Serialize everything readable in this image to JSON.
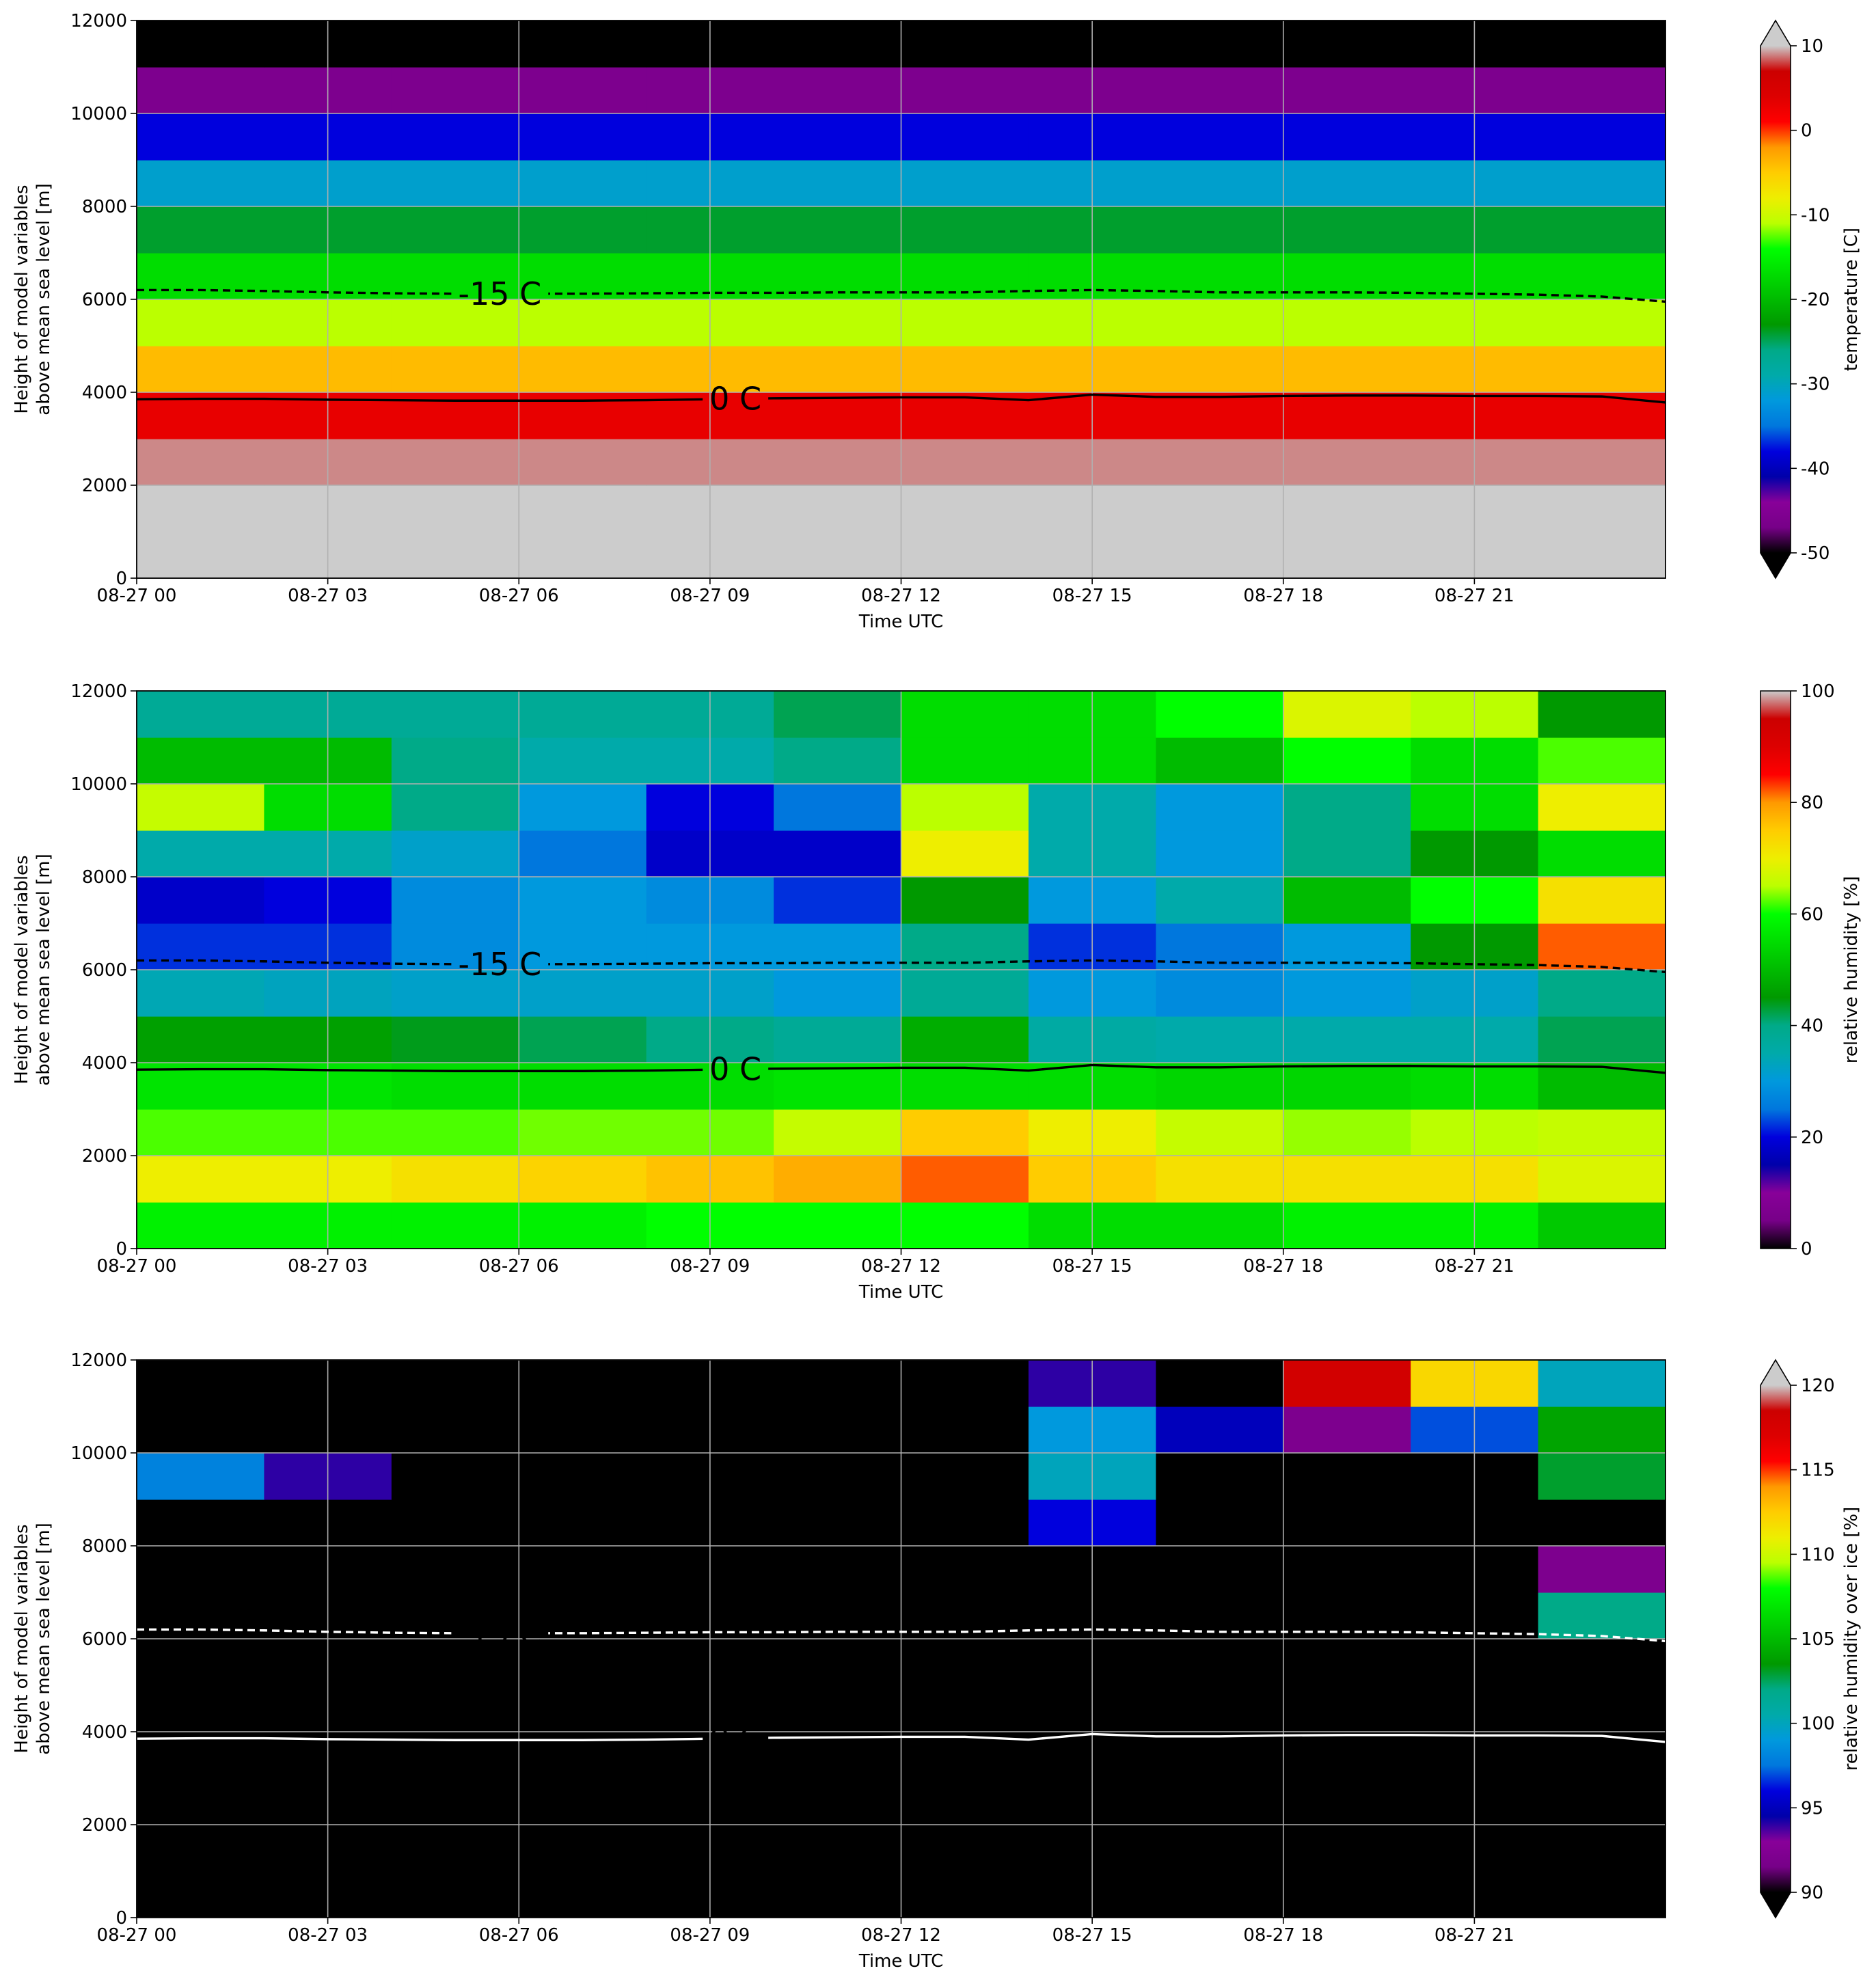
{
  "chart_data": [
    {
      "type": "heatmap",
      "x": [
        1,
        3,
        5,
        7,
        9,
        11,
        13,
        15,
        17,
        19,
        21,
        23
      ],
      "y": [
        500,
        1500,
        2500,
        3500,
        4500,
        5500,
        6500,
        7500,
        8500,
        9500,
        10500,
        11500
      ],
      "z": [
        [
          22,
          22,
          22,
          22,
          22,
          22,
          22,
          22,
          22,
          22,
          22,
          22
        ],
        [
          16,
          16,
          16,
          16,
          16,
          16,
          16,
          16,
          16,
          16,
          16,
          16
        ],
        [
          9,
          9,
          9,
          9,
          9,
          9,
          9,
          9,
          9,
          9,
          9,
          9
        ],
        [
          3,
          3,
          3,
          3,
          3,
          3,
          3,
          3,
          3,
          3,
          3,
          3
        ],
        [
          -4,
          -4,
          -4,
          -4,
          -4,
          -4,
          -4,
          -4,
          -4,
          -4,
          -4,
          -4
        ],
        [
          -11,
          -11,
          -11,
          -11,
          -11,
          -11,
          -11,
          -11,
          -11,
          -11,
          -11,
          -11
        ],
        [
          -17,
          -17,
          -17,
          -17,
          -17,
          -17,
          -17,
          -17,
          -17,
          -17,
          -17,
          -17
        ],
        [
          -24,
          -24,
          -24,
          -24,
          -24,
          -24,
          -24,
          -24,
          -24,
          -24,
          -24,
          -24
        ],
        [
          -31,
          -31,
          -31,
          -31,
          -31,
          -31,
          -31,
          -31,
          -31,
          -31,
          -31,
          -31
        ],
        [
          -38,
          -38,
          -38,
          -38,
          -38,
          -38,
          -38,
          -38,
          -38,
          -38,
          -38,
          -38
        ],
        [
          -46,
          -46,
          -46,
          -46,
          -46,
          -46,
          -46,
          -46,
          -46,
          -46,
          -46,
          -46
        ],
        [
          -52,
          -52,
          -52,
          -52,
          -52,
          -52,
          -52,
          -52,
          -52,
          -52,
          -52,
          -52
        ]
      ],
      "xlim": [
        0,
        24
      ],
      "ylim": [
        0,
        12000
      ],
      "xticks": [
        {
          "value": 0,
          "label": "08-27 00"
        },
        {
          "value": 3,
          "label": "08-27 03"
        },
        {
          "value": 6,
          "label": "08-27 06"
        },
        {
          "value": 9,
          "label": "08-27 09"
        },
        {
          "value": 12,
          "label": "08-27 12"
        },
        {
          "value": 15,
          "label": "08-27 15"
        },
        {
          "value": 18,
          "label": "08-27 18"
        },
        {
          "value": 21,
          "label": "08-27 21"
        }
      ],
      "yticks": [
        0,
        2000,
        4000,
        6000,
        8000,
        10000,
        12000
      ],
      "xlabel": "Time UTC",
      "ylabel": [
        "Height of model variables",
        "above mean sea level [m]"
      ],
      "grid": true,
      "colormap": [
        "#000000",
        "#770088",
        "#880099",
        "#0000aa",
        "#0000dd",
        "#0077dd",
        "#0099dd",
        "#00aaaa",
        "#00aa88",
        "#009900",
        "#00bb00",
        "#00dd00",
        "#00ff00",
        "#bbff00",
        "#eeee00",
        "#ffcc00",
        "#ff9900",
        "#ff0000",
        "#dd0000",
        "#cc0000",
        "#cccccc"
      ],
      "under_color": "#000000",
      "over_color": "#cccccc",
      "colorbar": {
        "label": "temperature [C]",
        "lim": [
          -50,
          10
        ],
        "ticks": [
          -50,
          -40,
          -30,
          -20,
          -10,
          0,
          10
        ],
        "extend": "both"
      },
      "contours": {
        "x": [
          0,
          1,
          2,
          3,
          4,
          5,
          6,
          7,
          8,
          9,
          10,
          11,
          12,
          13,
          14,
          15,
          16,
          17,
          18,
          19,
          20,
          21,
          22,
          23,
          24
        ],
        "series": [
          {
            "name": "-15 C",
            "color": "#000000",
            "linestyle": "dashed",
            "values": [
              6200,
              6200,
              6180,
              6150,
              6130,
              6120,
              6120,
              6120,
              6130,
              6140,
              6140,
              6150,
              6150,
              6150,
              6180,
              6200,
              6180,
              6150,
              6150,
              6150,
              6140,
              6120,
              6100,
              6060,
              5950
            ]
          },
          {
            "name": "0 C",
            "color": "#000000",
            "linestyle": "solid",
            "values": [
              3850,
              3860,
              3860,
              3840,
              3830,
              3820,
              3820,
              3820,
              3830,
              3850,
              3870,
              3880,
              3890,
              3890,
              3830,
              3950,
              3900,
              3900,
              3920,
              3930,
              3930,
              3920,
              3920,
              3910,
              3780
            ]
          }
        ]
      }
    },
    {
      "type": "heatmap",
      "x": [
        1,
        3,
        5,
        7,
        9,
        11,
        13,
        15,
        17,
        19,
        21,
        23
      ],
      "y": [
        500,
        1500,
        2500,
        3500,
        4500,
        5500,
        6500,
        7500,
        8500,
        9500,
        10500,
        11500
      ],
      "z": [
        [
          58,
          58,
          58,
          58,
          60,
          60,
          60,
          55,
          55,
          58,
          58,
          52
        ],
        [
          70,
          70,
          72,
          74,
          76,
          78,
          82,
          75,
          72,
          72,
          72,
          68
        ],
        [
          62,
          62,
          62,
          63,
          63,
          66,
          75,
          70,
          66,
          64,
          65,
          66
        ],
        [
          56,
          56,
          55,
          55,
          55,
          56,
          55,
          55,
          54,
          54,
          55,
          50
        ],
        [
          46,
          46,
          44,
          42,
          40,
          38,
          48,
          36,
          35,
          35,
          35,
          42
        ],
        [
          34,
          33,
          32,
          32,
          32,
          30,
          38,
          30,
          28,
          30,
          32,
          40
        ],
        [
          22,
          22,
          28,
          30,
          30,
          30,
          40,
          22,
          25,
          30,
          45,
          82
        ],
        [
          18,
          20,
          28,
          30,
          28,
          22,
          45,
          30,
          35,
          50,
          60,
          72
        ],
        [
          35,
          35,
          32,
          25,
          18,
          18,
          70,
          35,
          30,
          40,
          45,
          55
        ],
        [
          66,
          55,
          40,
          30,
          20,
          25,
          65,
          35,
          30,
          40,
          55,
          70
        ],
        [
          50,
          50,
          40,
          35,
          35,
          40,
          55,
          55,
          50,
          60,
          55,
          62
        ],
        [
          38,
          38,
          38,
          38,
          38,
          42,
          55,
          55,
          60,
          68,
          65,
          45
        ]
      ],
      "xlim": [
        0,
        24
      ],
      "ylim": [
        0,
        12000
      ],
      "xticks": [
        {
          "value": 0,
          "label": "08-27 00"
        },
        {
          "value": 3,
          "label": "08-27 03"
        },
        {
          "value": 6,
          "label": "08-27 06"
        },
        {
          "value": 9,
          "label": "08-27 09"
        },
        {
          "value": 12,
          "label": "08-27 12"
        },
        {
          "value": 15,
          "label": "08-27 15"
        },
        {
          "value": 18,
          "label": "08-27 18"
        },
        {
          "value": 21,
          "label": "08-27 21"
        }
      ],
      "yticks": [
        0,
        2000,
        4000,
        6000,
        8000,
        10000,
        12000
      ],
      "xlabel": "Time UTC",
      "ylabel": [
        "Height of model variables",
        "above mean sea level [m]"
      ],
      "grid": true,
      "colormap": [
        "#000000",
        "#770088",
        "#880099",
        "#0000aa",
        "#0000dd",
        "#0077dd",
        "#0099dd",
        "#00aaaa",
        "#00aa88",
        "#009900",
        "#00bb00",
        "#00dd00",
        "#00ff00",
        "#bbff00",
        "#eeee00",
        "#ffcc00",
        "#ff9900",
        "#ff0000",
        "#dd0000",
        "#cc0000",
        "#cccccc"
      ],
      "colorbar": {
        "label": "relative humidity [%]",
        "lim": [
          0,
          100
        ],
        "ticks": [
          0,
          20,
          40,
          60,
          80,
          100
        ],
        "extend": "neither"
      },
      "contours": {
        "x": [
          0,
          1,
          2,
          3,
          4,
          5,
          6,
          7,
          8,
          9,
          10,
          11,
          12,
          13,
          14,
          15,
          16,
          17,
          18,
          19,
          20,
          21,
          22,
          23,
          24
        ],
        "series": [
          {
            "name": "-15 C",
            "color": "#000000",
            "linestyle": "dashed",
            "values": [
              6200,
              6200,
              6180,
              6150,
              6130,
              6120,
              6120,
              6120,
              6130,
              6140,
              6140,
              6150,
              6150,
              6150,
              6180,
              6200,
              6180,
              6150,
              6150,
              6150,
              6140,
              6120,
              6100,
              6060,
              5950
            ]
          },
          {
            "name": "0 C",
            "color": "#000000",
            "linestyle": "solid",
            "values": [
              3850,
              3860,
              3860,
              3840,
              3830,
              3820,
              3820,
              3820,
              3830,
              3850,
              3870,
              3880,
              3890,
              3890,
              3830,
              3950,
              3900,
              3900,
              3920,
              3930,
              3930,
              3920,
              3920,
              3910,
              3780
            ]
          }
        ]
      }
    },
    {
      "type": "heatmap",
      "x": [
        1,
        3,
        5,
        7,
        9,
        11,
        13,
        15,
        17,
        19,
        21,
        23
      ],
      "y": [
        500,
        1500,
        2500,
        3500,
        4500,
        5500,
        6500,
        7500,
        8500,
        9500,
        10500,
        11500
      ],
      "z": [
        [
          80,
          80,
          80,
          80,
          80,
          80,
          80,
          80,
          80,
          80,
          80,
          80
        ],
        [
          80,
          80,
          80,
          80,
          80,
          80,
          80,
          80,
          80,
          80,
          80,
          80
        ],
        [
          80,
          80,
          80,
          80,
          80,
          80,
          80,
          80,
          80,
          80,
          80,
          80
        ],
        [
          80,
          80,
          80,
          80,
          80,
          80,
          80,
          80,
          80,
          80,
          80,
          80
        ],
        [
          80,
          80,
          80,
          80,
          80,
          80,
          80,
          80,
          80,
          80,
          80,
          80
        ],
        [
          80,
          80,
          80,
          80,
          80,
          80,
          80,
          80,
          80,
          80,
          80,
          80
        ],
        [
          80,
          80,
          80,
          80,
          80,
          80,
          80,
          80,
          80,
          80,
          80,
          102
        ],
        [
          80,
          80,
          80,
          80,
          80,
          80,
          80,
          80,
          80,
          80,
          80,
          92
        ],
        [
          80,
          80,
          80,
          80,
          80,
          80,
          80,
          96,
          80,
          80,
          80,
          80
        ],
        [
          98,
          94,
          80,
          80,
          80,
          80,
          80,
          100,
          80,
          80,
          80,
          103
        ],
        [
          80,
          80,
          80,
          80,
          80,
          80,
          80,
          99,
          95,
          92,
          97,
          104
        ],
        [
          80,
          80,
          80,
          80,
          80,
          80,
          80,
          94,
          80,
          118,
          112,
          100
        ]
      ],
      "xlim": [
        0,
        24
      ],
      "ylim": [
        0,
        12000
      ],
      "xticks": [
        {
          "value": 0,
          "label": "08-27 00"
        },
        {
          "value": 3,
          "label": "08-27 03"
        },
        {
          "value": 6,
          "label": "08-27 06"
        },
        {
          "value": 9,
          "label": "08-27 09"
        },
        {
          "value": 12,
          "label": "08-27 12"
        },
        {
          "value": 15,
          "label": "08-27 15"
        },
        {
          "value": 18,
          "label": "08-27 18"
        },
        {
          "value": 21,
          "label": "08-27 21"
        }
      ],
      "yticks": [
        0,
        2000,
        4000,
        6000,
        8000,
        10000,
        12000
      ],
      "xlabel": "Time UTC",
      "ylabel": [
        "Height of model variables",
        "above mean sea level [m]"
      ],
      "grid": true,
      "colormap": [
        "#000000",
        "#770088",
        "#880099",
        "#0000aa",
        "#0000dd",
        "#0077dd",
        "#0099dd",
        "#00aaaa",
        "#00aa88",
        "#009900",
        "#00bb00",
        "#00dd00",
        "#00ff00",
        "#bbff00",
        "#eeee00",
        "#ffcc00",
        "#ff9900",
        "#ff0000",
        "#dd0000",
        "#cc0000",
        "#cccccc"
      ],
      "under_color": "#000000",
      "over_color": "#cccccc",
      "colorbar": {
        "label": "relative humidity over ice [%]",
        "lim": [
          90,
          120
        ],
        "ticks": [
          90,
          95,
          100,
          105,
          110,
          115,
          120
        ],
        "extend": "both"
      },
      "contours": {
        "x": [
          0,
          1,
          2,
          3,
          4,
          5,
          6,
          7,
          8,
          9,
          10,
          11,
          12,
          13,
          14,
          15,
          16,
          17,
          18,
          19,
          20,
          21,
          22,
          23,
          24
        ],
        "series": [
          {
            "name": "-15 C",
            "color": "#ffffff",
            "linestyle": "dashed",
            "values": [
              6200,
              6200,
              6180,
              6150,
              6130,
              6120,
              6120,
              6120,
              6130,
              6140,
              6140,
              6150,
              6150,
              6150,
              6180,
              6200,
              6180,
              6150,
              6150,
              6150,
              6140,
              6120,
              6100,
              6060,
              5950
            ]
          },
          {
            "name": "0 C",
            "color": "#ffffff",
            "linestyle": "solid",
            "values": [
              3850,
              3860,
              3860,
              3840,
              3830,
              3820,
              3820,
              3820,
              3830,
              3850,
              3870,
              3880,
              3890,
              3890,
              3830,
              3950,
              3900,
              3900,
              3920,
              3930,
              3930,
              3920,
              3920,
              3910,
              3780
            ]
          }
        ]
      }
    }
  ]
}
